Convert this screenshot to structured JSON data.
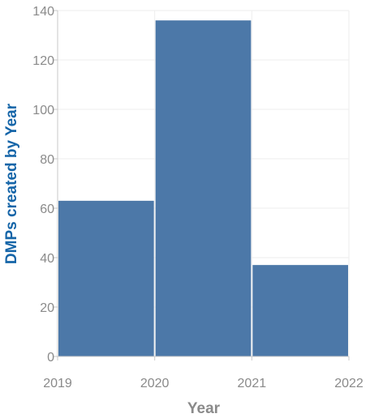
{
  "chart_data": {
    "type": "bar",
    "title": "",
    "xlabel": "Year",
    "ylabel": "DMPs created by Year",
    "x_ticks": [
      "2019",
      "2020",
      "2021",
      "2022"
    ],
    "bins": [
      {
        "start": "2019",
        "end": "2020",
        "value": 63
      },
      {
        "start": "2020",
        "end": "2021",
        "value": 136
      },
      {
        "start": "2021",
        "end": "2022",
        "value": 37
      }
    ],
    "y_ticks": [
      0,
      20,
      40,
      60,
      80,
      100,
      120,
      140
    ],
    "ylim": [
      0,
      140
    ],
    "grid": true,
    "colors": {
      "bar": "#4c78a8",
      "grid": "#eeeeee",
      "axis": "#c9c9c9",
      "ylabel": "#1565a8",
      "ticks": "#8a8a8a"
    }
  }
}
